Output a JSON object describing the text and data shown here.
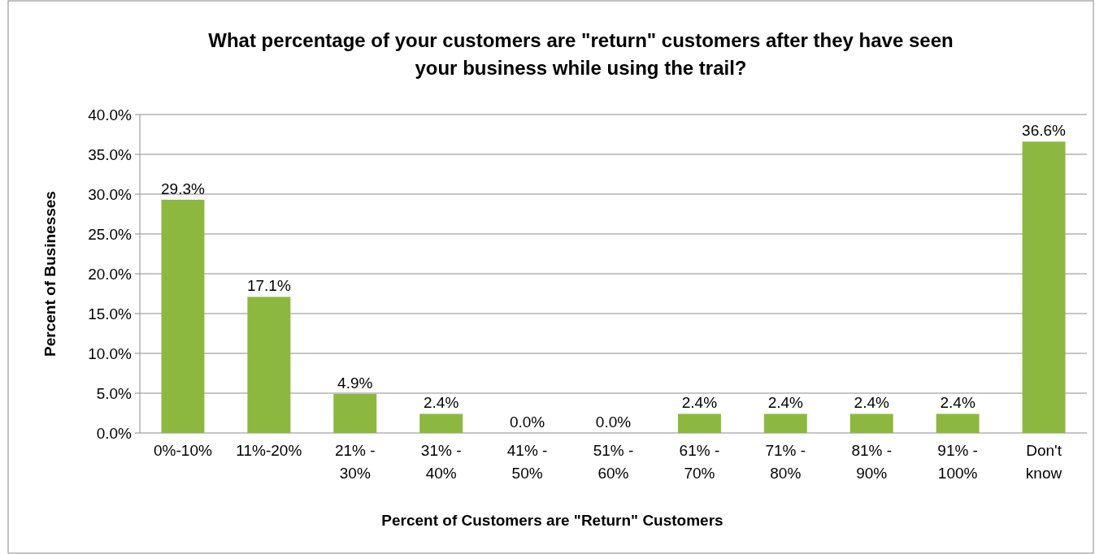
{
  "chart_data": {
    "type": "bar",
    "title": "What percentage of your customers are \"return\" customers after they have seen your business while using the trail?",
    "xlabel": "Percent of Customers are \"Return\" Customers",
    "ylabel": "Percent of Businesses",
    "categories": [
      "0%-10%",
      "11%-20%",
      "21% - 30%",
      "31% - 40%",
      "41% - 50%",
      "51% - 60%",
      "61% - 70%",
      "71% - 80%",
      "81% - 90%",
      "91% - 100%",
      "Don't know"
    ],
    "values": [
      29.3,
      17.1,
      4.9,
      2.4,
      0.0,
      0.0,
      2.4,
      2.4,
      2.4,
      2.4,
      36.6
    ],
    "value_labels": [
      "29.3%",
      "17.1%",
      "4.9%",
      "2.4%",
      "0.0%",
      "0.0%",
      "2.4%",
      "2.4%",
      "2.4%",
      "2.4%",
      "36.6%"
    ],
    "color": "#8cb83f",
    "ylim": [
      0,
      40
    ],
    "yticks": [
      {
        "value": 0,
        "label": "0.0%"
      },
      {
        "value": 5,
        "label": "5.0%"
      },
      {
        "value": 10,
        "label": "10.0%"
      },
      {
        "value": 15,
        "label": "15.0%"
      },
      {
        "value": 20,
        "label": "20.0%"
      },
      {
        "value": 25,
        "label": "25.0%"
      },
      {
        "value": 30,
        "label": "30.0%"
      },
      {
        "value": 35,
        "label": "35.0%"
      },
      {
        "value": 40,
        "label": "40.0%"
      }
    ],
    "grid": "y"
  }
}
